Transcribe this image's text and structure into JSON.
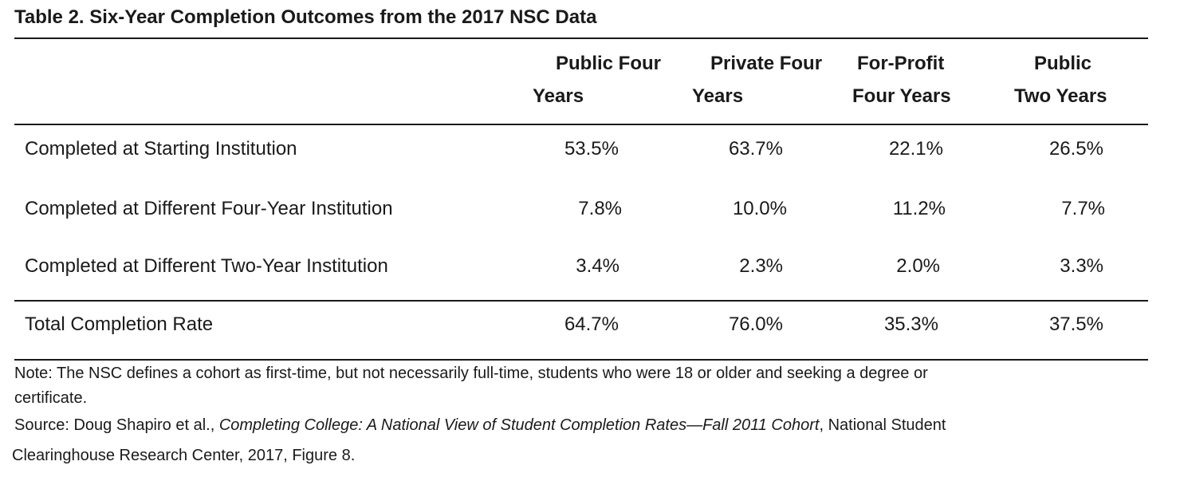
{
  "title": "Table 2. Six-Year Completion Outcomes from the 2017 NSC Data",
  "columns": [
    {
      "line1": "Public Four",
      "line2": "Years"
    },
    {
      "line1": "Private Four",
      "line2": "Years"
    },
    {
      "line1": "For-Profit",
      "line2": "Four Years"
    },
    {
      "line1": "Public",
      "line2": "Two Years"
    }
  ],
  "rows": [
    {
      "label": "Completed at Starting Institution",
      "values": [
        "53.5%",
        "63.7%",
        "22.1%",
        "26.5%"
      ]
    },
    {
      "label": "Completed at Different Four-Year Institution",
      "values": [
        "7.8%",
        "10.0%",
        "11.2%",
        "7.7%"
      ]
    },
    {
      "label": "Completed at Different Two-Year Institution",
      "values": [
        "3.4%",
        "2.3%",
        "2.0%",
        "3.3%"
      ]
    },
    {
      "label": "Total Completion Rate",
      "values": [
        "64.7%",
        "76.0%",
        "35.3%",
        "37.5%"
      ]
    }
  ],
  "note": {
    "line1": "Note: The NSC defines a cohort as first-time, but not necessarily full-time, students who were 18 or older and seeking a degree or",
    "line2": "certificate."
  },
  "source": {
    "prefix": "Source: Doug Shapiro et al., ",
    "italic": "Completing College: A National View of Student Completion Rates—Fall 2011 Cohort",
    "suffix": ", National Student",
    "line2": "Clearinghouse Research Center, 2017, Figure 8."
  }
}
